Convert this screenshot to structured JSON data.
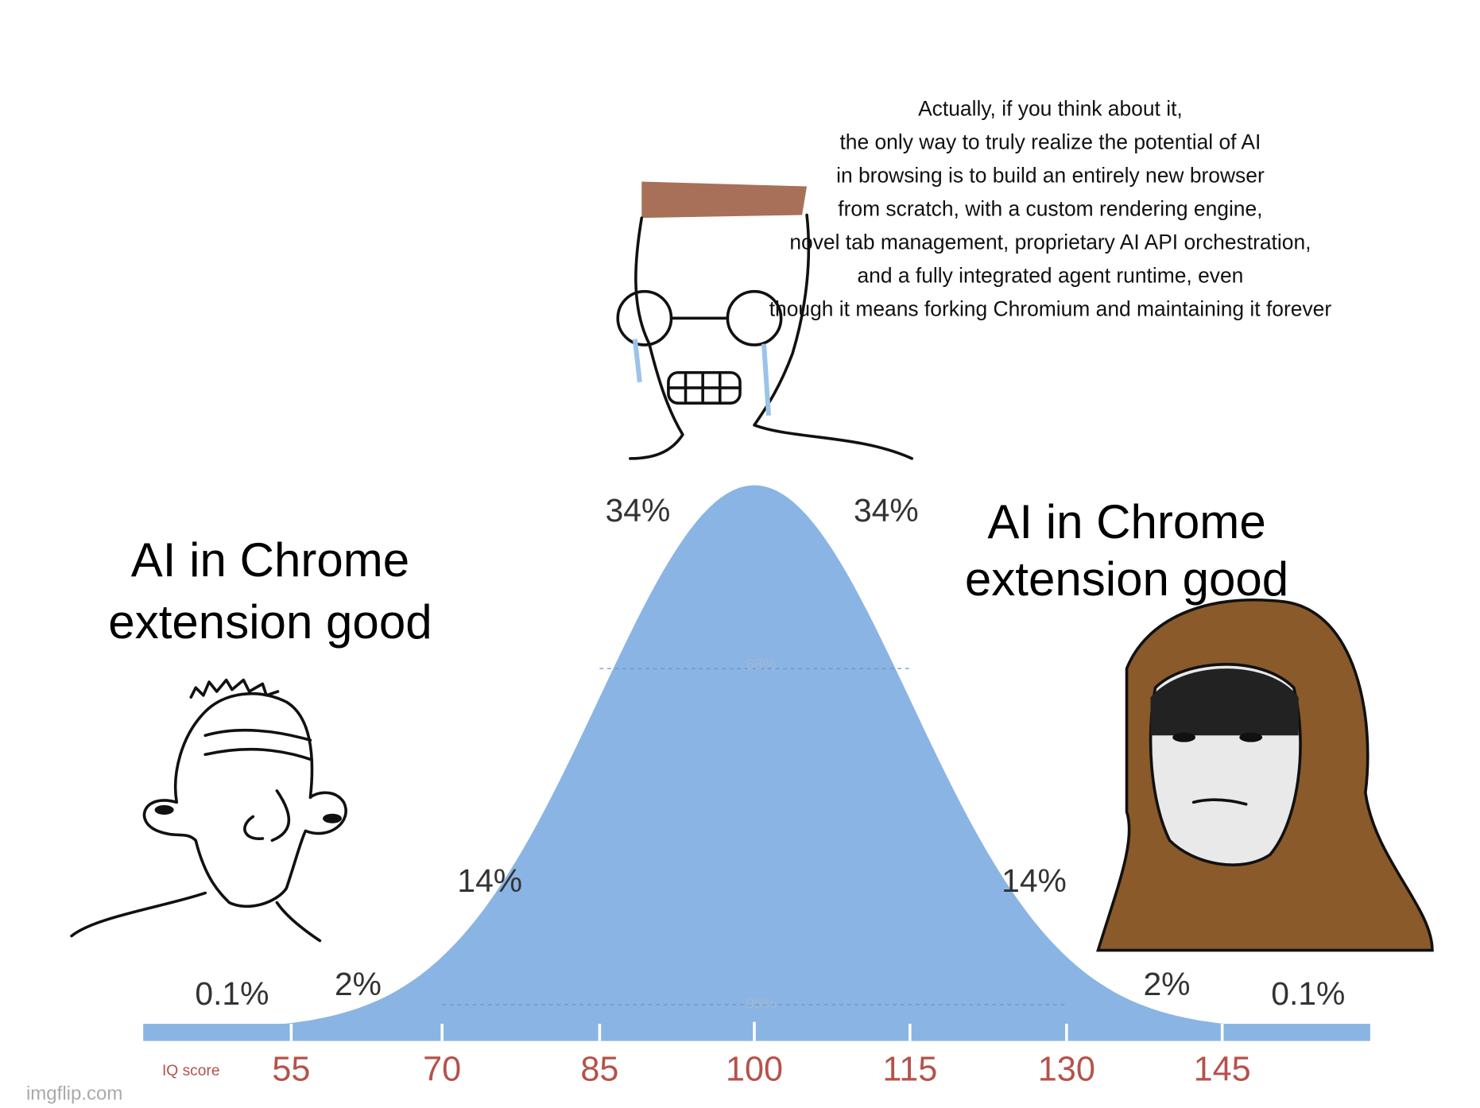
{
  "meme": {
    "center_caption": [
      "Actually, if you think about it,",
      "the only way to truly realize the potential of AI",
      "in browsing is to build an entirely new browser",
      "from scratch, with a custom rendering engine,",
      "novel tab management, proprietary AI API orchestration,",
      "and a fully integrated agent runtime, even",
      "though it means forking Chromium and maintaining it forever"
    ],
    "left_caption": [
      "AI in Chrome",
      "extension good"
    ],
    "right_caption": [
      "AI in Chrome",
      "extension good"
    ],
    "percent_labels": [
      "0.1%",
      "2%",
      "14%",
      "34%",
      "34%",
      "14%",
      "2%",
      "0.1%"
    ],
    "band_labels": [
      "68%",
      "95%"
    ],
    "axis_label": "IQ score",
    "scores": [
      55,
      70,
      85,
      100,
      115,
      130,
      145
    ],
    "watermark": "imgflip.com"
  }
}
